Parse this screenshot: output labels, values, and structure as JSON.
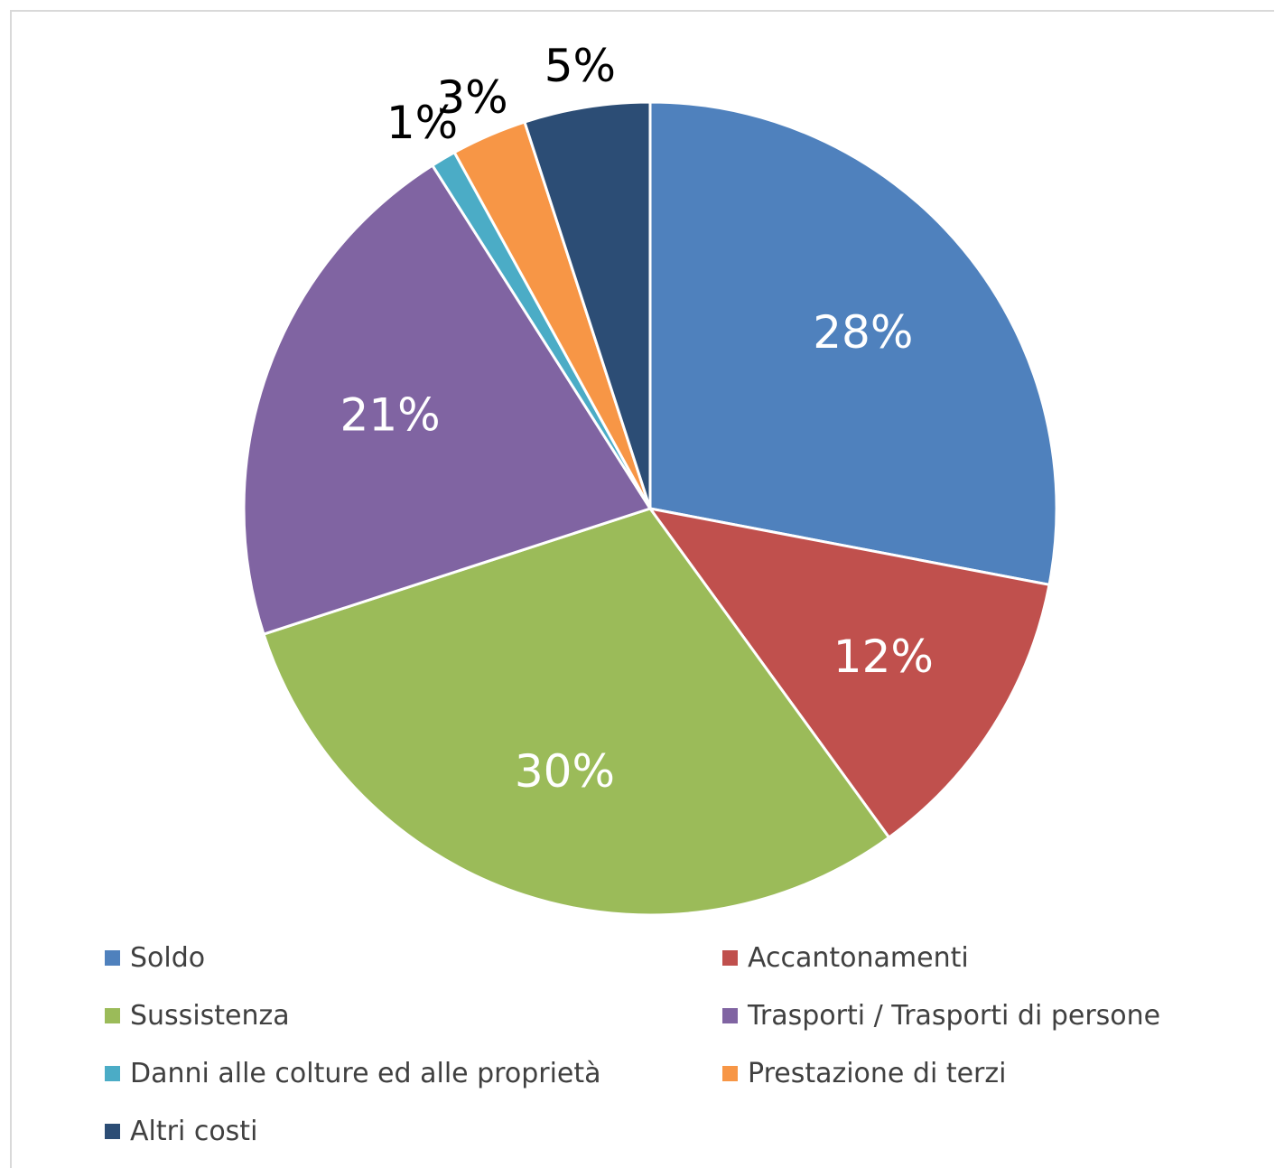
{
  "chart_data": {
    "type": "pie",
    "categories": [
      "Soldo",
      "Accantonamenti",
      "Sussistenza",
      "Trasporti / Trasporti di persone",
      "Danni alle colture ed alle proprietà",
      "Prestazione di terzi",
      "Altri costi"
    ],
    "values": [
      28,
      12,
      30,
      21,
      1,
      3,
      5
    ],
    "labels": [
      "28%",
      "12%",
      "30%",
      "21%",
      "1%",
      "3%",
      "5%"
    ],
    "colors": [
      "#4f81bd",
      "#c0504d",
      "#9bbb59",
      "#8064a2",
      "#4bacc6",
      "#f79646",
      "#2c4d75"
    ],
    "label_colors": [
      "#ffffff",
      "#ffffff",
      "#ffffff",
      "#ffffff",
      "#000000",
      "#000000",
      "#000000"
    ],
    "legend_position": "bottom"
  }
}
